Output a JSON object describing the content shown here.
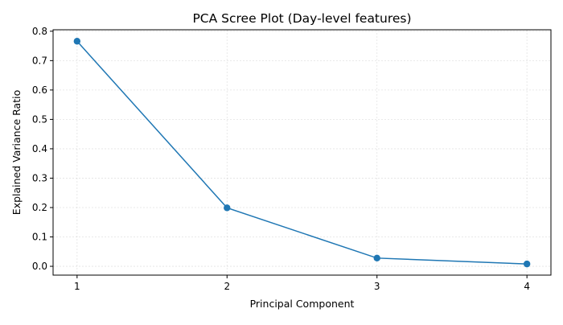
{
  "chart_data": {
    "type": "line",
    "title": "PCA Scree Plot (Day-level features)",
    "xlabel": "Principal Component",
    "ylabel": "Explained Variance Ratio",
    "x": [
      1,
      2,
      3,
      4
    ],
    "x_ticks": [
      "1",
      "2",
      "3",
      "4"
    ],
    "y_ticks": [
      "0.0",
      "0.1",
      "0.2",
      "0.3",
      "0.4",
      "0.5",
      "0.6",
      "0.7",
      "0.8"
    ],
    "xlim": [
      0.84,
      4.16
    ],
    "ylim": [
      -0.03,
      0.805
    ],
    "grid": true,
    "series": [
      {
        "values": [
          0.766,
          0.199,
          0.028,
          0.008
        ],
        "color": "#1f77b4"
      }
    ]
  }
}
